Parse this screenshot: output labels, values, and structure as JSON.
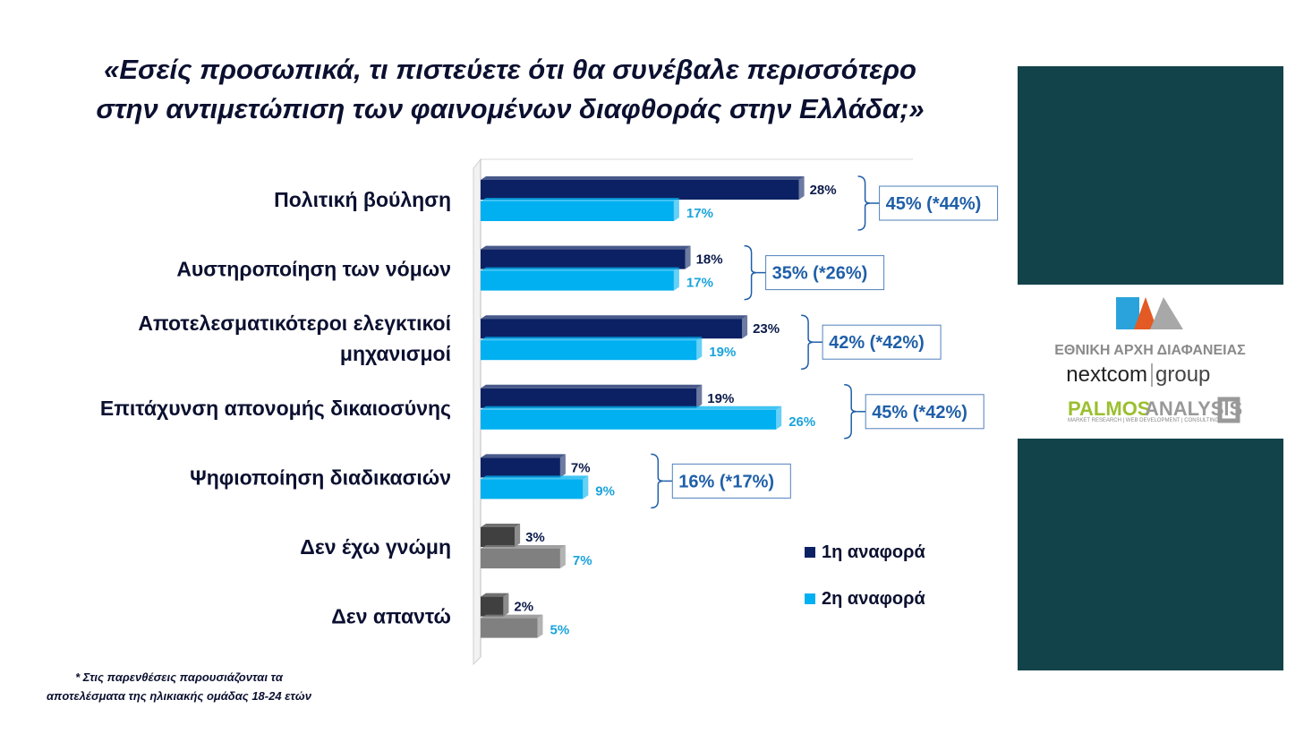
{
  "title_lines": [
    "«Εσείς προσωπικά, τι πιστεύετε ότι θα συνέβαλε περισσότερο",
    "στην αντιμετώπιση των φαινομένων διαφθοράς στην Ελλάδα;»"
  ],
  "footnote_lines": [
    "* Στις παρενθέσεις παρουσιάζονται τα",
    "αποτελέσματα της ηλικιακής ομάδας 18-24 ετών"
  ],
  "logos": {
    "eaa": "ΕΑΔ",
    "eaa_name": "ΕΘΝΙΚΗ ΑΡΧΗ ΔΙΑΦΑΝΕΙΑΣ",
    "nextcom_a": "nextcom",
    "nextcom_b": "group",
    "palmos_a": "PALMOS",
    "palmos_b": "ANALYSIS",
    "palmos_tag": "MARKET RESEARCH | WEB DEVELOPMENT | CONSULTING"
  },
  "colors": {
    "first": "#0b2163",
    "second": "#00b0f0",
    "first_gray": "#404040",
    "second_gray": "#808080",
    "panel": "#13434a",
    "box": "#1f5fa8"
  },
  "chart_data": {
    "type": "bar",
    "orientation": "horizontal",
    "categories": [
      [
        "Πολιτική βούληση"
      ],
      [
        "Αυστηροποίηση των νόμων"
      ],
      [
        "Αποτελεσματικότεροι ελεγκτικοί",
        "μηχανισμοί"
      ],
      [
        "Επιτάχυνση απονομής δικαιοσύνης"
      ],
      [
        "Ψηφιοποίηση διαδικασιών"
      ],
      [
        "Δεν έχω γνώμη"
      ],
      [
        "Δεν απαντώ"
      ]
    ],
    "series": [
      {
        "name": "1η αναφορά",
        "values": [
          28,
          18,
          23,
          19,
          7,
          3,
          2
        ],
        "labels": [
          "28%",
          "18%",
          "23%",
          "19%",
          "7%",
          "3%",
          "2%"
        ]
      },
      {
        "name": "2η αναφορά",
        "values": [
          17,
          17,
          19,
          26,
          9,
          7,
          5
        ],
        "labels": [
          "17%",
          "17%",
          "19%",
          "26%",
          "9%",
          "7%",
          "5%"
        ]
      }
    ],
    "totals": [
      "45% (*44%)",
      "35% (*26%)",
      "42% (*42%)",
      "45% (*42%)",
      "16% (*17%)"
    ],
    "legend_placement": "bottom-right",
    "grid": false,
    "style": "3d"
  }
}
